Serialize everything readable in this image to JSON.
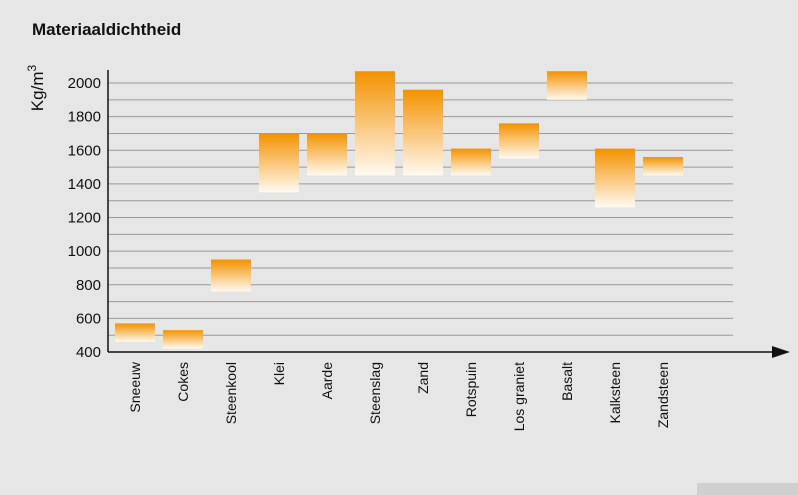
{
  "title": "Materiaaldichtheid",
  "chart_data": {
    "type": "bar",
    "subtype": "floating-range",
    "title": "Materiaaldichtheid",
    "ylabel": "Kg/m",
    "ylabel_superscript": "3",
    "xlabel": "",
    "ylim": [
      400,
      2000
    ],
    "yticks": [
      400,
      600,
      800,
      1000,
      1200,
      1400,
      1600,
      1800,
      2000
    ],
    "grid": true,
    "colors": {
      "top": "#f39200",
      "bottom": "#fffaf2",
      "axis": "#111111",
      "grid": "#9a9a9a"
    },
    "categories": [
      "Sneeuw",
      "Cokes",
      "Steenkool",
      "Klei",
      "Aarde",
      "Steenslag",
      "Zand",
      "Rotspuin",
      "Los graniet",
      "Basalt",
      "Kalksteen",
      "Zandsteen"
    ],
    "ranges": [
      [
        460,
        570
      ],
      [
        420,
        530
      ],
      [
        760,
        950
      ],
      [
        1350,
        1700
      ],
      [
        1450,
        1700
      ],
      [
        1450,
        2070
      ],
      [
        1450,
        1960
      ],
      [
        1450,
        1610
      ],
      [
        1550,
        1760
      ],
      [
        1900,
        2070
      ],
      [
        1260,
        1610
      ],
      [
        1450,
        1560
      ]
    ]
  }
}
